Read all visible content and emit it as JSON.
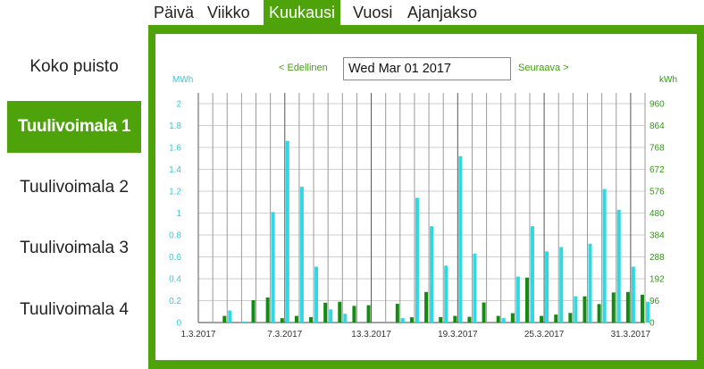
{
  "tabs": [
    {
      "label": "Päivä",
      "active": false
    },
    {
      "label": "Viikko",
      "active": false
    },
    {
      "label": "Kuukausi",
      "active": true
    },
    {
      "label": "Vuosi",
      "active": false
    },
    {
      "label": "Ajanjakso",
      "active": false
    }
  ],
  "sidebar": {
    "items": [
      {
        "label": "Koko puisto",
        "active": false
      },
      {
        "label": "Tuulivoimala 1",
        "active": true
      },
      {
        "label": "Tuulivoimala 2",
        "active": false
      },
      {
        "label": "Tuulivoimala 3",
        "active": false
      },
      {
        "label": "Tuulivoimala 4",
        "active": false
      }
    ]
  },
  "nav": {
    "prev_label": "< Edellinen",
    "date_value": "Wed Mar 01 2017",
    "next_label": "Seuraava >"
  },
  "colors": {
    "accent": "#4ea30b",
    "bar_cyan": "#2fd9e4",
    "bar_green": "#138a12",
    "left_axis": "#3cc6d8",
    "right_axis": "#2e9a10"
  },
  "chart_data": {
    "type": "bar",
    "title": "",
    "ylabel_left": "MWh",
    "ylabel_right": "kWh",
    "ylim_left": [
      0,
      2
    ],
    "ylim_right": [
      0,
      960
    ],
    "yticks_left": [
      "0",
      "0.2",
      "0.4",
      "0.6",
      "0.8",
      "1",
      "1.2",
      "1.4",
      "1.6",
      "1.8",
      "2"
    ],
    "yticks_right": [
      "0",
      "96",
      "192",
      "288",
      "384",
      "480",
      "576",
      "672",
      "768",
      "864",
      "960"
    ],
    "xtick_labels": [
      "1.3.2017",
      "7.3.2017",
      "13.3.2017",
      "19.3.2017",
      "25.3.2017",
      "31.3.2017"
    ],
    "xtick_days": [
      1,
      7,
      13,
      19,
      25,
      31
    ],
    "days": [
      1,
      2,
      3,
      4,
      5,
      6,
      7,
      8,
      9,
      10,
      11,
      12,
      13,
      14,
      15,
      16,
      17,
      18,
      19,
      20,
      21,
      22,
      23,
      24,
      25,
      26,
      27,
      28,
      29,
      30,
      31,
      32
    ],
    "grid": true,
    "legend": "none",
    "series": [
      {
        "axis": "left",
        "color": "#2fd9e4",
        "values": [
          0,
          0,
          0.11,
          0.01,
          0,
          1.01,
          1.66,
          1.24,
          0.51,
          0.12,
          0.08,
          0,
          0,
          0,
          0.04,
          1.14,
          0.88,
          0.52,
          1.52,
          0.63,
          0,
          0.04,
          0.42,
          0.88,
          0.65,
          0.69,
          0.24,
          0.72,
          1.22,
          1.03,
          0.51,
          0.19
        ]
      },
      {
        "axis": "right",
        "color": "#138a12",
        "values": [
          0,
          0,
          29,
          0,
          98,
          110,
          19,
          29,
          24,
          87,
          91,
          73,
          76,
          0,
          82,
          23,
          134,
          24,
          29,
          25,
          88,
          29,
          41,
          197,
          29,
          35,
          42,
          115,
          81,
          132,
          134,
          122
        ]
      }
    ]
  }
}
